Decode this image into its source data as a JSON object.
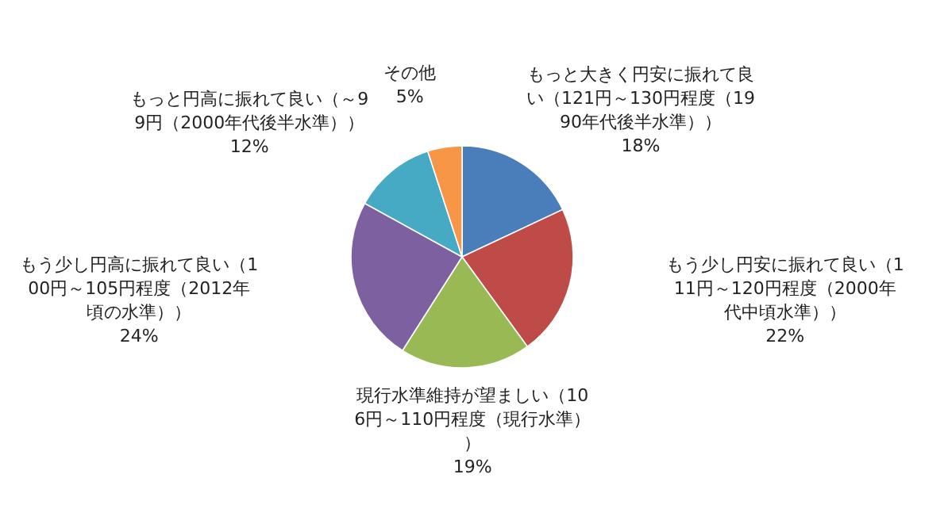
{
  "chart_data": {
    "type": "pie",
    "categories": [
      "もっと大きく円安に振れて良い（121円～130円程度（1990年代後半水準））",
      "もう少し円安に振れて良い（111円～120円程度（2000年代中頃水準））",
      "現行水準維持が望ましい（106円～110円程度（現行水準））",
      "もう少し円高に振れて良い（100円～105円程度（2012年頃の水準））",
      "もっと円高に振れて良い（～99円（2000年代後半水準））",
      "その他"
    ],
    "values": [
      18,
      22,
      19,
      24,
      12,
      5
    ],
    "colors": [
      "#4a7ebb",
      "#be4b48",
      "#98b954",
      "#7d60a0",
      "#46aac5",
      "#f79646"
    ],
    "value_labels": [
      "18%",
      "22%",
      "19%",
      "24%",
      "12%",
      "5%"
    ],
    "legend": false
  }
}
